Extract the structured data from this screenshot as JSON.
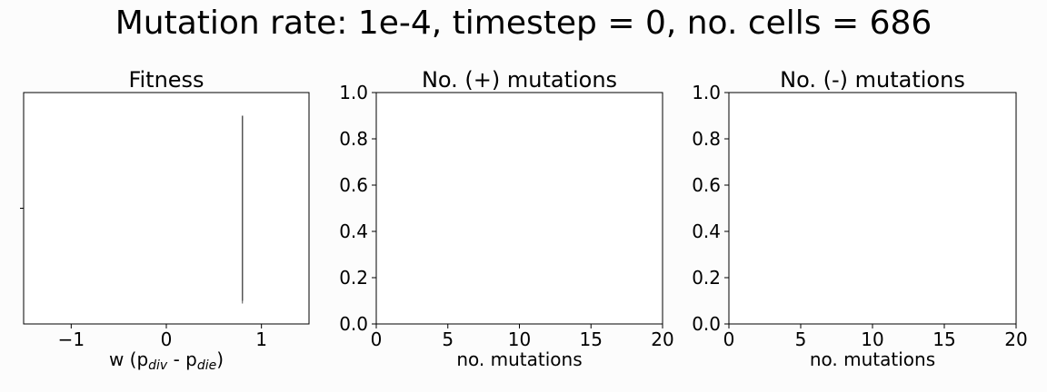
{
  "suptitle": "Mutation rate: 1e-4, timestep = 0, no. cells = 686",
  "chart_data": [
    {
      "type": "violin",
      "title": "Fitness",
      "xlabel": {
        "base": "w (p",
        "sub1": "div",
        "mid": " - p",
        "sub2": "die",
        "end": ")"
      },
      "ylabel": "",
      "xlim": [
        -1.5,
        1.5
      ],
      "xticks": [
        -1,
        0,
        1
      ],
      "xtick_labels": [
        "−1",
        "0",
        "1"
      ],
      "yticks": [
        0
      ],
      "ytick_labels": [
        ""
      ],
      "series": [
        {
          "position": 0,
          "min": 0.8,
          "max": 0.8,
          "extent": [
            -0.8,
            0.8
          ]
        }
      ]
    },
    {
      "type": "histogram",
      "title": "No. (+) mutations",
      "xlabel": "no. mutations",
      "ylabel": "",
      "xlim": [
        0,
        20
      ],
      "ylim": [
        0,
        1
      ],
      "xticks": [
        0,
        5,
        10,
        15,
        20
      ],
      "xtick_labels": [
        "0",
        "5",
        "10",
        "15",
        "20"
      ],
      "yticks": [
        0,
        0.2,
        0.4,
        0.6,
        0.8,
        1.0
      ],
      "ytick_labels": [
        "0.0",
        "0.2",
        "0.4",
        "0.6",
        "0.8",
        "1.0"
      ],
      "values": []
    },
    {
      "type": "histogram",
      "title": "No. (-) mutations",
      "xlabel": "no. mutations",
      "ylabel": "",
      "xlim": [
        0,
        20
      ],
      "ylim": [
        0,
        1
      ],
      "xticks": [
        0,
        5,
        10,
        15,
        20
      ],
      "xtick_labels": [
        "0",
        "5",
        "10",
        "15",
        "20"
      ],
      "yticks": [
        0,
        0.2,
        0.4,
        0.6,
        0.8,
        1.0
      ],
      "ytick_labels": [
        "0.0",
        "0.2",
        "0.4",
        "0.6",
        "0.8",
        "1.0"
      ],
      "values": []
    }
  ],
  "colors": {
    "axis": "#000000",
    "violin": "#555555",
    "background": "#fcfcfc"
  }
}
